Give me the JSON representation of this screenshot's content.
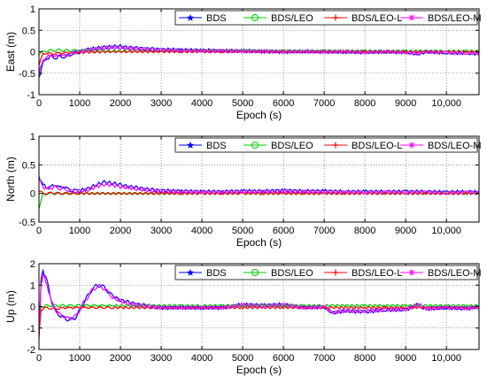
{
  "chart_data": [
    {
      "type": "line",
      "ylabel": "East (m)",
      "xlabel": "Epoch (s)",
      "xlim": [
        0,
        10800
      ],
      "ylim": [
        -1,
        1
      ],
      "xticks": [
        0,
        1000,
        2000,
        3000,
        4000,
        5000,
        6000,
        7000,
        8000,
        9000,
        10000
      ],
      "xtick_labels": [
        "0",
        "1000",
        "2000",
        "3000",
        "4000",
        "5000",
        "6000",
        "7000",
        "8000",
        "9000",
        "10,000"
      ],
      "yticks": [
        -1,
        -0.5,
        0,
        0.5,
        1
      ],
      "ytick_labels": [
        "-1",
        "-0.5",
        "0",
        "0.5",
        "1"
      ],
      "grid": true,
      "legend_position": "top-right",
      "x": [
        0,
        100,
        200,
        300,
        400,
        500,
        600,
        700,
        800,
        900,
        1000,
        1200,
        1400,
        1600,
        1800,
        2000,
        2200,
        2400,
        2600,
        2800,
        3000,
        3500,
        4000,
        4500,
        5000,
        5500,
        6000,
        6500,
        7000,
        7500,
        8000,
        8500,
        9000,
        9300,
        9500,
        10000,
        10500,
        10800
      ],
      "series": [
        {
          "name": "BDS",
          "color": "#0000ff",
          "values": [
            -0.6,
            -0.25,
            -0.15,
            -0.1,
            -0.15,
            -0.1,
            -0.12,
            -0.1,
            -0.05,
            -0.02,
            0.0,
            0.05,
            0.08,
            0.1,
            0.12,
            0.12,
            0.1,
            0.08,
            0.07,
            0.06,
            0.05,
            0.04,
            0.03,
            0.02,
            0.02,
            0.01,
            0.0,
            0.01,
            0.0,
            0.0,
            -0.01,
            0.0,
            -0.01,
            -0.05,
            0.0,
            -0.02,
            -0.03,
            -0.04
          ]
        },
        {
          "name": "BDS/LEO",
          "color": "#00cc00",
          "values": [
            -0.05,
            0.0,
            0.02,
            0.03,
            0.03,
            0.04,
            0.03,
            0.03,
            0.03,
            0.03,
            0.03,
            0.03,
            0.02,
            0.02,
            0.02,
            0.02,
            0.02,
            0.02,
            0.02,
            0.02,
            0.02,
            0.02,
            0.02,
            0.02,
            0.02,
            0.02,
            0.02,
            0.02,
            0.02,
            0.02,
            0.02,
            0.02,
            0.02,
            0.02,
            0.02,
            0.02,
            0.02,
            0.02
          ]
        },
        {
          "name": "BDS/LEO-L",
          "color": "#ff0000",
          "values": [
            -0.3,
            -0.05,
            -0.03,
            -0.05,
            -0.04,
            -0.03,
            -0.03,
            -0.02,
            -0.03,
            -0.02,
            -0.02,
            -0.01,
            -0.01,
            0.0,
            0.0,
            0.0,
            0.0,
            0.0,
            0.0,
            0.0,
            0.0,
            0.0,
            0.0,
            0.0,
            0.0,
            0.0,
            0.0,
            0.0,
            0.0,
            0.0,
            0.0,
            0.0,
            0.0,
            0.0,
            0.0,
            0.0,
            0.0,
            0.0
          ]
        },
        {
          "name": "BDS/LEO-M",
          "color": "#ff00ff",
          "values": [
            -0.5,
            -0.2,
            -0.12,
            -0.08,
            -0.12,
            -0.08,
            -0.1,
            -0.08,
            -0.04,
            -0.01,
            0.0,
            0.04,
            0.07,
            0.09,
            0.1,
            0.1,
            0.08,
            0.07,
            0.06,
            0.05,
            0.04,
            0.03,
            0.02,
            0.02,
            0.01,
            0.01,
            0.0,
            0.0,
            0.0,
            0.0,
            -0.01,
            0.0,
            -0.01,
            -0.04,
            0.0,
            -0.02,
            -0.03,
            -0.03
          ]
        }
      ]
    },
    {
      "type": "line",
      "ylabel": "North (m)",
      "xlabel": "Epoch (s)",
      "xlim": [
        0,
        10800
      ],
      "ylim": [
        -0.5,
        1
      ],
      "xticks": [
        0,
        1000,
        2000,
        3000,
        4000,
        5000,
        6000,
        7000,
        8000,
        9000,
        10000
      ],
      "xtick_labels": [
        "0",
        "1000",
        "2000",
        "3000",
        "4000",
        "5000",
        "6000",
        "7000",
        "8000",
        "9000",
        "10,000"
      ],
      "yticks": [
        -0.5,
        0,
        0.5,
        1
      ],
      "ytick_labels": [
        "-0.5",
        "0",
        "0.5",
        "1"
      ],
      "grid": true,
      "legend_position": "top-right",
      "x": [
        0,
        100,
        200,
        300,
        400,
        500,
        600,
        700,
        800,
        900,
        1000,
        1200,
        1400,
        1600,
        1800,
        2000,
        2200,
        2400,
        2600,
        2800,
        3000,
        3500,
        4000,
        4500,
        5000,
        5500,
        6000,
        6500,
        7000,
        7500,
        8000,
        8500,
        9000,
        9500,
        10000,
        10500,
        10800
      ],
      "series": [
        {
          "name": "BDS",
          "color": "#0000ff",
          "values": [
            0.3,
            0.15,
            0.1,
            0.12,
            0.15,
            0.1,
            0.12,
            0.08,
            0.05,
            0.05,
            0.05,
            0.08,
            0.15,
            0.2,
            0.18,
            0.15,
            0.12,
            0.1,
            0.08,
            0.06,
            0.05,
            0.04,
            0.03,
            0.03,
            0.04,
            0.04,
            0.05,
            0.04,
            0.04,
            0.03,
            0.03,
            0.03,
            0.03,
            0.03,
            0.02,
            0.03,
            0.02
          ]
        },
        {
          "name": "BDS/LEO",
          "color": "#00cc00",
          "values": [
            -0.25,
            -0.02,
            0.0,
            0.0,
            0.0,
            0.0,
            0.0,
            0.0,
            0.0,
            0.0,
            0.0,
            0.0,
            0.0,
            0.0,
            0.0,
            0.0,
            0.0,
            0.0,
            0.0,
            0.0,
            0.0,
            0.0,
            0.0,
            0.0,
            0.0,
            0.0,
            0.0,
            0.0,
            0.0,
            0.0,
            0.0,
            0.0,
            0.0,
            0.0,
            0.0,
            0.0,
            0.0
          ]
        },
        {
          "name": "BDS/LEO-L",
          "color": "#ff0000",
          "values": [
            0.05,
            0.0,
            0.0,
            0.01,
            0.01,
            0.0,
            0.0,
            0.0,
            0.0,
            0.0,
            0.0,
            0.0,
            0.0,
            0.0,
            0.0,
            0.0,
            0.0,
            0.0,
            0.0,
            0.0,
            0.0,
            0.0,
            0.0,
            0.0,
            0.0,
            0.0,
            0.0,
            0.0,
            0.0,
            0.0,
            0.0,
            0.0,
            0.0,
            0.0,
            0.0,
            0.0,
            0.0
          ]
        },
        {
          "name": "BDS/LEO-M",
          "color": "#ff00ff",
          "values": [
            0.25,
            0.12,
            0.08,
            0.1,
            0.12,
            0.08,
            0.1,
            0.06,
            0.04,
            0.04,
            0.04,
            0.06,
            0.12,
            0.16,
            0.15,
            0.12,
            0.1,
            0.08,
            0.06,
            0.05,
            0.04,
            0.03,
            0.02,
            0.02,
            0.03,
            0.03,
            0.04,
            0.03,
            0.03,
            0.02,
            0.02,
            0.02,
            0.02,
            0.02,
            0.01,
            0.02,
            0.01
          ]
        }
      ]
    },
    {
      "type": "line",
      "ylabel": "Up (m)",
      "xlabel": "Epoch (s)",
      "xlim": [
        0,
        10800
      ],
      "ylim": [
        -2,
        2
      ],
      "xticks": [
        0,
        1000,
        2000,
        3000,
        4000,
        5000,
        6000,
        7000,
        8000,
        9000,
        10000
      ],
      "xtick_labels": [
        "0",
        "1000",
        "2000",
        "3000",
        "4000",
        "5000",
        "6000",
        "7000",
        "8000",
        "9000",
        "10,000"
      ],
      "yticks": [
        -2,
        -1,
        0,
        1,
        2
      ],
      "ytick_labels": [
        "-2",
        "-1",
        "0",
        "1",
        "2"
      ],
      "grid": true,
      "legend_position": "top-right",
      "x": [
        0,
        50,
        100,
        200,
        300,
        400,
        500,
        600,
        700,
        800,
        900,
        1000,
        1100,
        1200,
        1300,
        1400,
        1500,
        1600,
        1700,
        1800,
        2000,
        2200,
        2400,
        2600,
        2800,
        3000,
        3500,
        4000,
        4500,
        5000,
        5500,
        6000,
        6500,
        7000,
        7200,
        7500,
        8000,
        8500,
        9000,
        9300,
        9500,
        10000,
        10500,
        10800
      ],
      "series": [
        {
          "name": "BDS",
          "color": "#0000ff",
          "values": [
            -1.5,
            1.2,
            1.7,
            1.2,
            0.3,
            -0.2,
            -0.4,
            -0.5,
            -0.6,
            -0.6,
            -0.5,
            -0.2,
            0.2,
            0.5,
            0.8,
            0.95,
            1.0,
            0.9,
            0.7,
            0.5,
            0.3,
            0.2,
            0.1,
            0.05,
            0.0,
            -0.05,
            -0.05,
            -0.05,
            -0.05,
            0.1,
            0.05,
            0.1,
            -0.05,
            0.0,
            -0.3,
            -0.2,
            -0.25,
            -0.15,
            -0.15,
            0.1,
            -0.1,
            -0.05,
            -0.1,
            0.0
          ]
        },
        {
          "name": "BDS/LEO",
          "color": "#00cc00",
          "values": [
            -1.0,
            -0.1,
            0.0,
            0.05,
            0.05,
            0.05,
            0.05,
            0.05,
            0.05,
            0.05,
            0.05,
            0.05,
            0.05,
            0.05,
            0.05,
            0.05,
            0.05,
            0.05,
            0.05,
            0.05,
            0.05,
            0.05,
            0.05,
            0.05,
            0.05,
            0.05,
            0.05,
            0.05,
            0.05,
            0.05,
            0.05,
            0.05,
            0.05,
            0.05,
            0.05,
            0.05,
            0.05,
            0.05,
            0.05,
            0.05,
            0.05,
            0.05,
            0.05,
            0.05
          ]
        },
        {
          "name": "BDS/LEO-L",
          "color": "#ff0000",
          "values": [
            -1.3,
            -0.2,
            -0.1,
            -0.05,
            -0.1,
            -0.1,
            -0.1,
            -0.05,
            -0.05,
            -0.05,
            -0.05,
            -0.05,
            -0.05,
            -0.05,
            -0.05,
            -0.05,
            -0.05,
            -0.05,
            -0.05,
            -0.05,
            -0.05,
            -0.05,
            -0.05,
            -0.05,
            -0.05,
            -0.05,
            -0.05,
            -0.05,
            -0.05,
            -0.05,
            -0.05,
            -0.05,
            -0.05,
            -0.05,
            -0.05,
            -0.05,
            -0.05,
            -0.05,
            -0.05,
            -0.05,
            -0.05,
            -0.05,
            -0.05,
            -0.05
          ]
        },
        {
          "name": "BDS/LEO-M",
          "color": "#ff00ff",
          "values": [
            -1.2,
            1.0,
            1.5,
            1.0,
            0.25,
            -0.15,
            -0.35,
            -0.45,
            -0.55,
            -0.55,
            -0.45,
            -0.15,
            0.2,
            0.45,
            0.75,
            0.9,
            0.95,
            0.85,
            0.65,
            0.45,
            0.25,
            0.15,
            0.08,
            0.03,
            -0.02,
            -0.05,
            -0.05,
            -0.05,
            -0.05,
            0.08,
            0.03,
            0.08,
            -0.05,
            -0.02,
            -0.28,
            -0.2,
            -0.22,
            -0.15,
            -0.13,
            0.08,
            -0.1,
            -0.05,
            -0.08,
            -0.02
          ]
        }
      ]
    }
  ]
}
